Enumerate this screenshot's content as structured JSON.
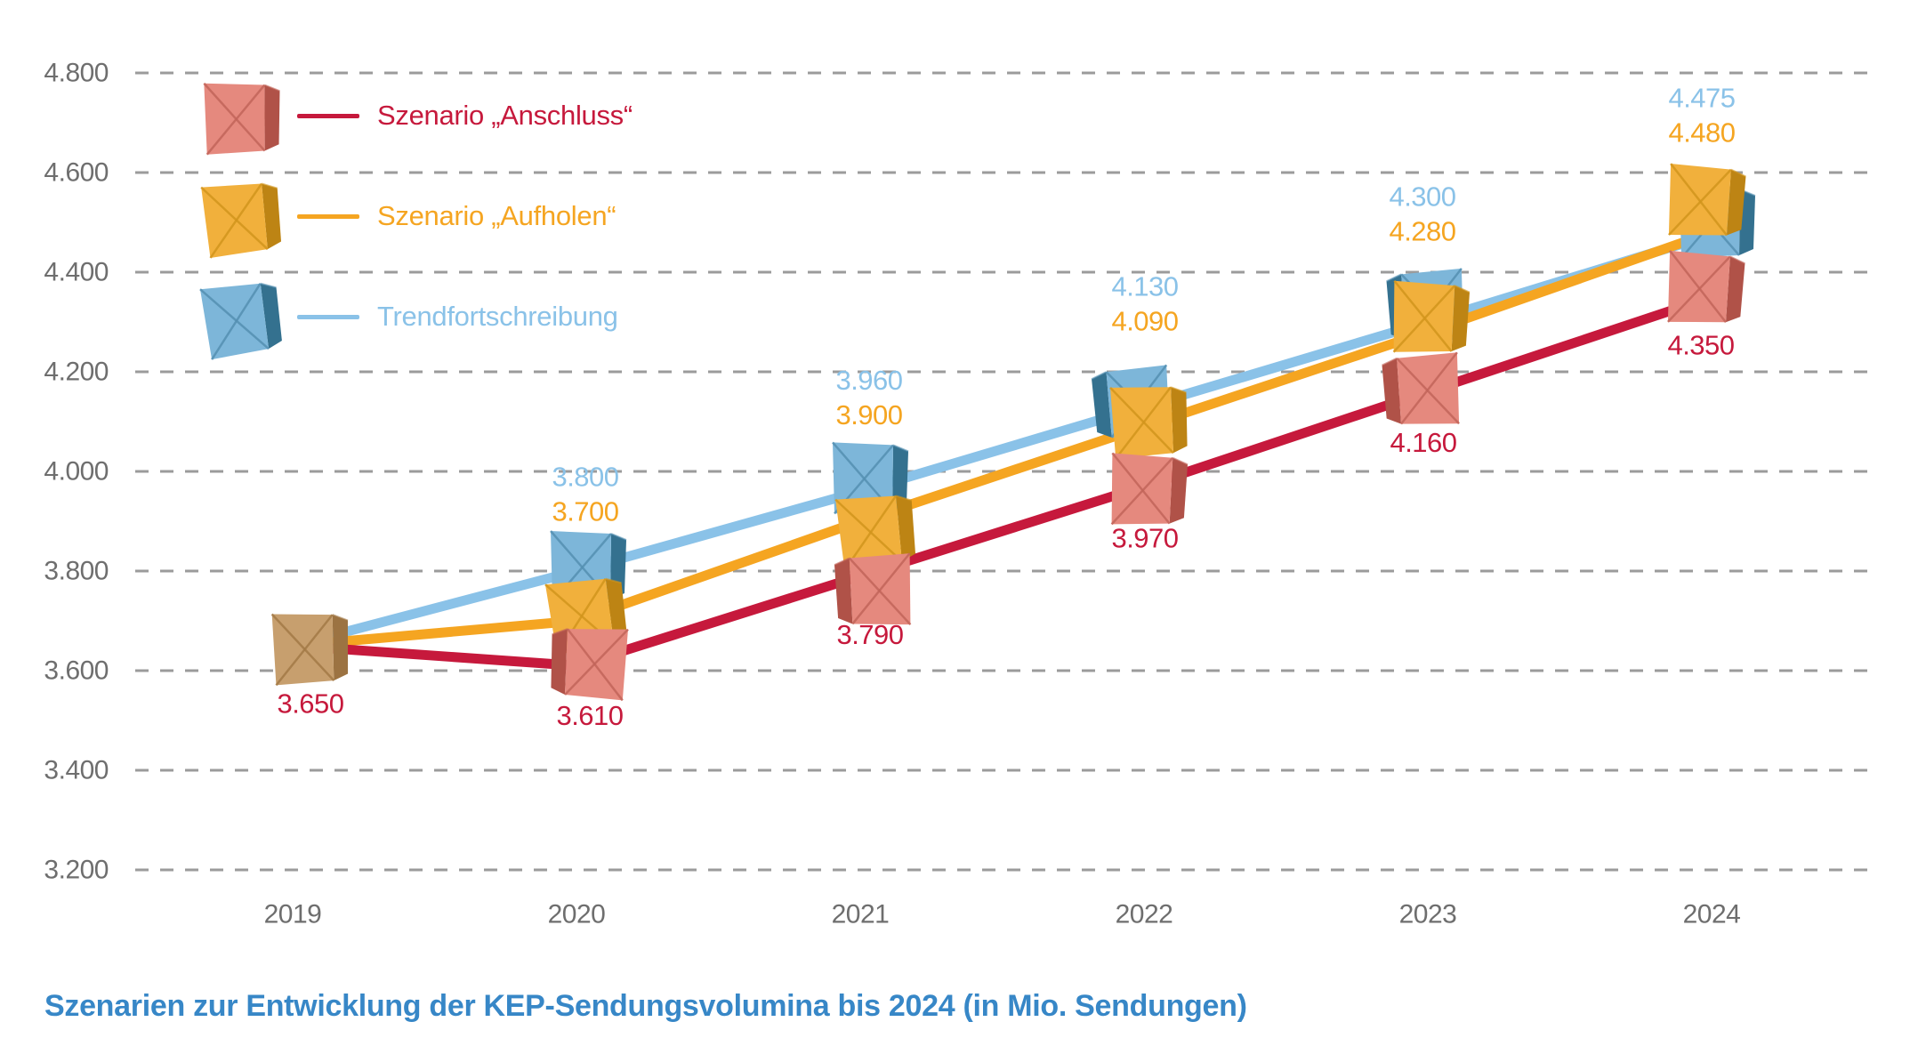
{
  "caption": "Szenarien zur Entwicklung der KEP-Sendungsvolumina bis 2024 (in Mio. Sendungen)",
  "legend": {
    "items": [
      {
        "label": "Szenario „Anschluss“",
        "series": "anschluss",
        "color": "#c6193c",
        "marker": "parcel-box-icon-red"
      },
      {
        "label": "Szenario „Aufholen“",
        "series": "aufholen",
        "color": "#f5a521",
        "marker": "parcel-box-icon-yellow"
      },
      {
        "label": "Trendfortschreibung",
        "series": "trend",
        "color": "#8ac2e8",
        "marker": "parcel-box-icon-blue"
      }
    ]
  },
  "chart_data": {
    "type": "line",
    "title": "Szenarien zur Entwicklung der KEP-Sendungsvolumina bis 2024 (in Mio. Sendungen)",
    "categories": [
      "2019",
      "2020",
      "2021",
      "2022",
      "2023",
      "2024"
    ],
    "series": [
      {
        "key": "trend",
        "name": "Trendfortschreibung",
        "color": "#8ac2e8",
        "values": [
          3650,
          3800,
          3960,
          4130,
          4300,
          4475
        ]
      },
      {
        "key": "aufholen",
        "name": "Szenario „Aufholen“",
        "color": "#f5a521",
        "values": [
          3650,
          3700,
          3900,
          4090,
          4280,
          4480
        ]
      },
      {
        "key": "anschluss",
        "name": "Szenario „Anschluss“",
        "color": "#c6193c",
        "values": [
          3650,
          3610,
          3790,
          3970,
          4160,
          4350
        ]
      }
    ],
    "shared_start_point": {
      "year": "2019",
      "value": 3650,
      "label_color": "#c6193c",
      "marker": "parcel-box-icon-brown"
    },
    "ylim": [
      3200,
      4800
    ],
    "ytick_step": 200,
    "ytick_labels": [
      "3.200",
      "3.400",
      "3.600",
      "3.800",
      "4.000",
      "4.200",
      "4.400",
      "4.600",
      "4.800"
    ],
    "grid": "horizontal-dashed",
    "legend_position": "top-left",
    "number_format": "de-thousands-dot",
    "xlabel": "",
    "ylabel": ""
  },
  "colors": {
    "background": "#ffffff",
    "grid": "#9b9b9b",
    "axis_text": "#6e6e6e",
    "caption": "#3787c7",
    "boxes": {
      "start": {
        "face": "#c79f6e",
        "side": "#9c7342",
        "fold": "#a37a47"
      },
      "anschluss": {
        "face": "#e5897e",
        "side": "#b05248",
        "fold": "#c2655a"
      },
      "aufholen": {
        "face": "#f1b03c",
        "side": "#bd8414",
        "fold": "#d2951d"
      },
      "trend": {
        "face": "#7db6d9",
        "side": "#34718f",
        "fold": "#5590b2"
      }
    }
  },
  "icons": {
    "legend_marker": "parcel-box-icon",
    "point_marker": "parcel-box-icon"
  }
}
